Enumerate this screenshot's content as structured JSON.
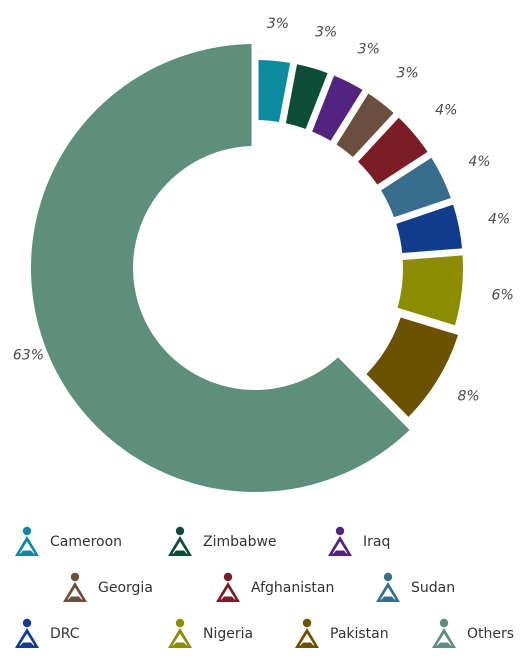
{
  "chart_data": {
    "type": "pie",
    "donut": true,
    "categories": [
      "Cameroon",
      "Zimbabwe",
      "Iraq",
      "Georgia",
      "Afghanistan",
      "Sudan",
      "DRC",
      "Nigeria",
      "Pakistan",
      "Others"
    ],
    "values": [
      3,
      3,
      3,
      3,
      4,
      4,
      4,
      6,
      8,
      63
    ],
    "labels": [
      "3%",
      "3%",
      "3%",
      "3%",
      "4%",
      "4%",
      "4%",
      "6%",
      "8%",
      "63%"
    ],
    "colors": [
      "#0e8aa0",
      "#0d4d38",
      "#52247f",
      "#6b4f3e",
      "#7a1d24",
      "#386d8e",
      "#113c8c",
      "#8b8c00",
      "#6c5200",
      "#5e8f7c"
    ],
    "unit": "%",
    "legend": {
      "placement": "bottom",
      "rows": [
        [
          "Cameroon",
          "Zimbabwe",
          "Iraq"
        ],
        [
          "Georgia",
          "Afghanistan",
          "Sudan"
        ],
        [
          "DRC",
          "Nigeria",
          "Pakistan",
          "Others"
        ]
      ]
    }
  },
  "legend_icon": "person-triangle-icon"
}
